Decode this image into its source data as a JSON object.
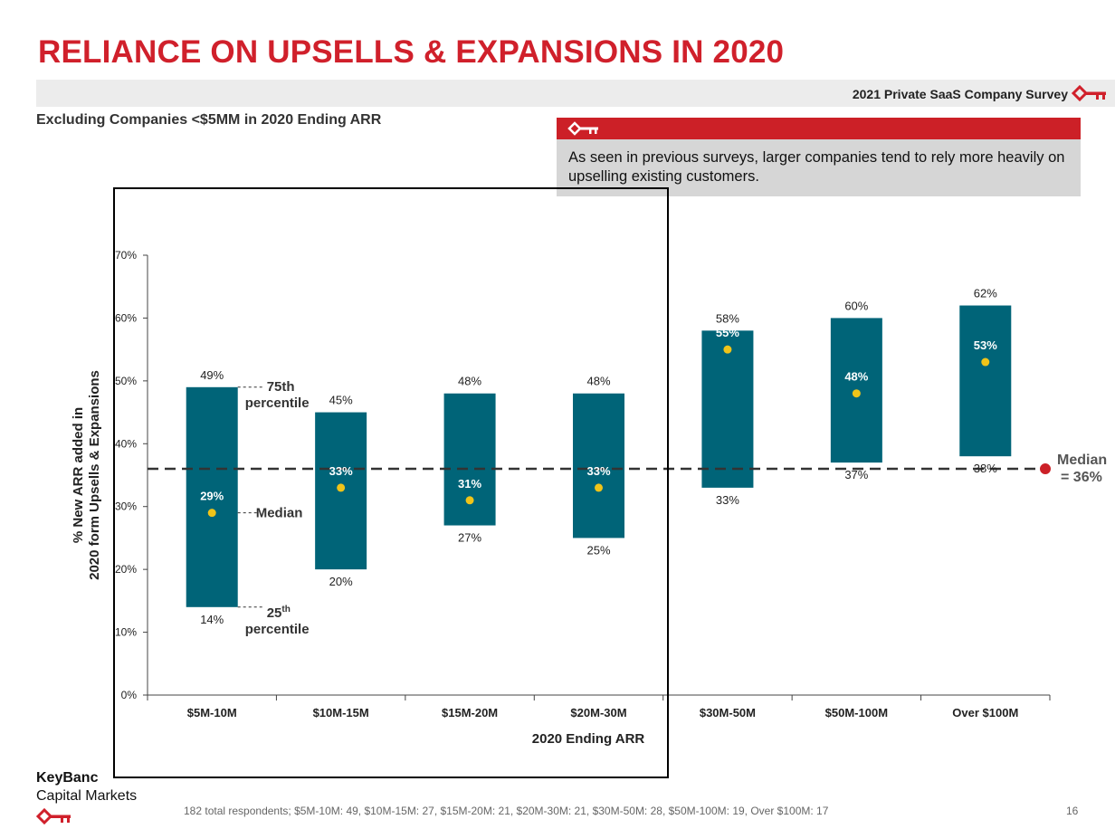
{
  "title": "RELIANCE ON UPSELLS & EXPANSIONS IN 2020",
  "survey_label": "2021 Private SaaS Company Survey",
  "subtitle": "Excluding Companies <$5MM in 2020 Ending ARR",
  "callout": {
    "icon": "key-icon",
    "text": "As seen in previous surveys, larger companies tend to rely more heavily on upselling existing customers."
  },
  "colors": {
    "brand_red": "#d0202b",
    "bar": "#006478",
    "median_dot": "#f0c419",
    "median_line": "#333333",
    "median_marker": "#cc2027"
  },
  "chart_data": {
    "type": "floating-bar",
    "title": "",
    "xlabel": "2020 Ending ARR",
    "ylabel": "% New ARR added in 2020 form Upsells & Expansions",
    "ylim": [
      0,
      70
    ],
    "yticks": [
      "0%",
      "10%",
      "20%",
      "30%",
      "40%",
      "50%",
      "60%",
      "70%"
    ],
    "categories": [
      "$5M-10M",
      "$10M-15M",
      "$15M-20M",
      "$20M-30M",
      "$30M-50M",
      "$50M-100M",
      "Over $100M"
    ],
    "series": [
      {
        "name": "25th percentile",
        "values": [
          14,
          20,
          27,
          25,
          33,
          37,
          38
        ],
        "labels": [
          "14%",
          "20%",
          "27%",
          "25%",
          "33%",
          "37%",
          "38%"
        ]
      },
      {
        "name": "75th percentile",
        "values": [
          49,
          45,
          48,
          48,
          58,
          60,
          62
        ],
        "labels": [
          "49%",
          "45%",
          "48%",
          "48%",
          "58%",
          "60%",
          "62%"
        ]
      },
      {
        "name": "Median",
        "values": [
          29,
          33,
          31,
          33,
          55,
          48,
          53
        ],
        "labels": [
          "29%",
          "33%",
          "31%",
          "33%",
          "55%",
          "48%",
          "53%"
        ]
      }
    ],
    "overall_median": {
      "value": 36,
      "label_line1": "Median",
      "label_line2": "= 36%"
    },
    "annotations": {
      "p75_line1": "75th",
      "p75_line2": "percentile",
      "median": "Median",
      "p25_line1": "25",
      "p25_sup": "th",
      "p25_line2": "percentile"
    }
  },
  "brand": {
    "line1": "KeyBanc",
    "line2": "Capital Markets"
  },
  "footnote": "182 total respondents; $5M-10M: 49, $10M-15M: 27, $15M-20M: 21, $20M-30M: 21, $30M-50M: 28,  $50M-100M: 19, Over $100M: 17",
  "page_number": "16"
}
